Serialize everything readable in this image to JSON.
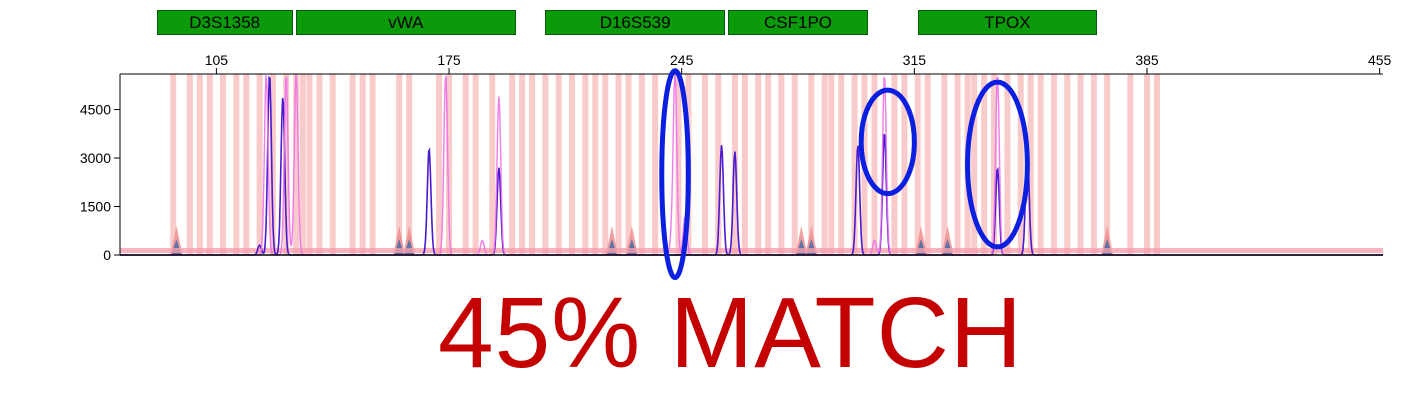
{
  "loci": [
    {
      "name": "D3S1358",
      "start": 87,
      "end": 128
    },
    {
      "name": "vWA",
      "start": 129,
      "end": 195
    },
    {
      "name": "D16S539",
      "start": 204,
      "end": 258
    },
    {
      "name": "CSF1PO",
      "start": 259,
      "end": 301
    },
    {
      "name": "TPOX",
      "start": 316,
      "end": 370
    }
  ],
  "caption": "45% MATCH",
  "colors": {
    "accent_blue": "#0b1fe0",
    "trace_purple": "#4a1ad0",
    "trace_pink": "#ee6ee8",
    "bins": "#f7b8b8",
    "locus_green": "#0a9a0a",
    "caption_red": "#c40000"
  },
  "chart_data": {
    "type": "line",
    "x_ticks": [
      105,
      175,
      245,
      315,
      385,
      455
    ],
    "y_ticks": [
      0,
      1500,
      3000,
      4500
    ],
    "xlim": [
      76,
      456
    ],
    "ylim": [
      0,
      5600
    ],
    "series": [
      {
        "color": "#4a1ad0",
        "peaks": [
          {
            "x": 121,
            "y": 5600
          },
          {
            "x": 125,
            "y": 4900
          },
          {
            "x": 118,
            "y": 300
          },
          {
            "x": 169,
            "y": 3300
          },
          {
            "x": 190,
            "y": 2700
          },
          {
            "x": 257,
            "y": 3400
          },
          {
            "x": 261,
            "y": 3200
          },
          {
            "x": 298,
            "y": 3400
          },
          {
            "x": 306,
            "y": 3800
          },
          {
            "x": 340,
            "y": 2700
          },
          {
            "x": 349,
            "y": 3200
          }
        ]
      },
      {
        "color": "#ee6ee8",
        "peaks": [
          {
            "x": 120,
            "y": 5600
          },
          {
            "x": 126,
            "y": 5600
          },
          {
            "x": 129,
            "y": 5600
          },
          {
            "x": 174,
            "y": 5600
          },
          {
            "x": 190,
            "y": 4900
          },
          {
            "x": 185,
            "y": 450
          },
          {
            "x": 243,
            "y": 5600
          },
          {
            "x": 246,
            "y": 1200
          },
          {
            "x": 242,
            "y": 450
          },
          {
            "x": 306,
            "y": 5600
          },
          {
            "x": 303,
            "y": 450
          },
          {
            "x": 340,
            "y": 5600
          }
        ]
      }
    ],
    "ladder_peaks": [
      {
        "x": 93,
        "y": 900
      },
      {
        "x": 163,
        "y": 900
      },
      {
        "x": 160,
        "y": 900
      },
      {
        "x": 230,
        "y": 900
      },
      {
        "x": 224,
        "y": 900
      },
      {
        "x": 284,
        "y": 900
      },
      {
        "x": 281,
        "y": 900
      },
      {
        "x": 325,
        "y": 900
      },
      {
        "x": 317,
        "y": 900
      },
      {
        "x": 373,
        "y": 900
      }
    ],
    "bins": [
      92,
      97,
      100,
      103,
      107,
      111,
      114,
      118,
      122,
      126,
      129,
      131,
      133,
      136,
      140,
      146,
      149,
      152,
      160,
      163,
      172,
      175,
      180,
      183,
      188,
      194,
      197,
      200,
      204,
      208,
      212,
      216,
      219,
      222,
      226,
      229,
      233,
      237,
      244,
      247,
      252,
      256,
      261,
      264,
      268,
      271,
      275,
      279,
      284,
      288,
      290,
      293,
      297,
      300,
      303,
      309,
      312,
      316,
      319,
      324,
      328,
      331,
      333,
      336,
      339,
      343,
      347,
      350,
      353,
      357,
      361,
      365,
      369,
      373,
      380,
      385,
      388
    ],
    "highlights": [
      {
        "x": 243,
        "y": 2500,
        "rx": 4,
        "ry": 6400
      },
      {
        "x": 307,
        "y": 3500,
        "rx": 8,
        "ry": 3200
      },
      {
        "x": 340,
        "y": 2800,
        "rx": 9,
        "ry": 5100
      }
    ]
  }
}
